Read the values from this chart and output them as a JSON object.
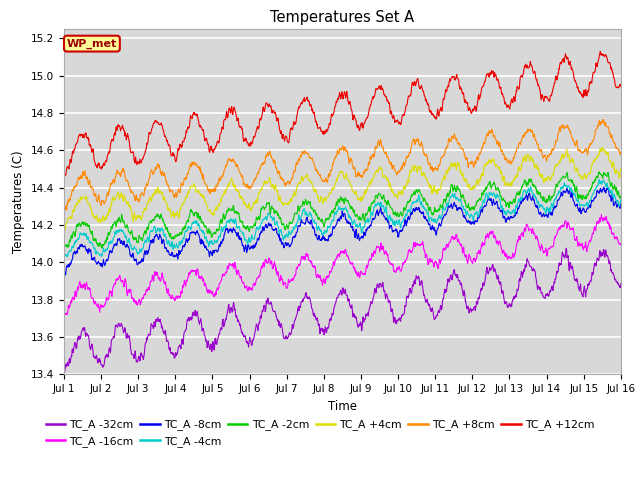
{
  "title": "Temperatures Set A",
  "xlabel": "Time",
  "ylabel": "Temperatures (C)",
  "ylim": [
    13.4,
    15.25
  ],
  "xlim": [
    0,
    15
  ],
  "xtick_labels": [
    "Jul 1",
    "Jul 2",
    "Jul 3",
    "Jul 4",
    "Jul 5",
    "Jul 6",
    "Jul 7",
    "Jul 8",
    "Jul 9",
    "Jul 10",
    "Jul 11",
    "Jul 12",
    "Jul 13",
    "Jul 14",
    "Jul 15",
    "Jul 16"
  ],
  "ytick_values": [
    13.4,
    13.6,
    13.8,
    14.0,
    14.2,
    14.4,
    14.6,
    14.8,
    15.0,
    15.2
  ],
  "series": [
    {
      "label": "TC_A -32cm",
      "color": "#9900cc",
      "base": 13.52,
      "trend": 0.03,
      "amp": 0.1,
      "noise": 0.025
    },
    {
      "label": "TC_A -16cm",
      "color": "#ff00ff",
      "base": 13.8,
      "trend": 0.025,
      "amp": 0.07,
      "noise": 0.02
    },
    {
      "label": "TC_A -8cm",
      "color": "#0000ee",
      "base": 14.02,
      "trend": 0.022,
      "amp": 0.06,
      "noise": 0.018
    },
    {
      "label": "TC_A -4cm",
      "color": "#00cccc",
      "base": 14.08,
      "trend": 0.02,
      "amp": 0.06,
      "noise": 0.018
    },
    {
      "label": "TC_A -2cm",
      "color": "#00cc00",
      "base": 14.14,
      "trend": 0.019,
      "amp": 0.06,
      "noise": 0.018
    },
    {
      "label": "TC_A +4cm",
      "color": "#dddd00",
      "base": 14.27,
      "trend": 0.018,
      "amp": 0.07,
      "noise": 0.018
    },
    {
      "label": "TC_A +8cm",
      "color": "#ff8800",
      "base": 14.38,
      "trend": 0.02,
      "amp": 0.08,
      "noise": 0.018
    },
    {
      "label": "TC_A +12cm",
      "color": "#ee0000",
      "base": 14.58,
      "trend": 0.03,
      "amp": 0.1,
      "noise": 0.02
    }
  ],
  "legend_text": "WP_met",
  "legend_bg": "#ffff99",
  "legend_border": "#cc0000",
  "plot_bg": "#d8d8d8",
  "fig_bg": "#ffffff",
  "grid_color": "#ffffff",
  "n_points": 1440
}
